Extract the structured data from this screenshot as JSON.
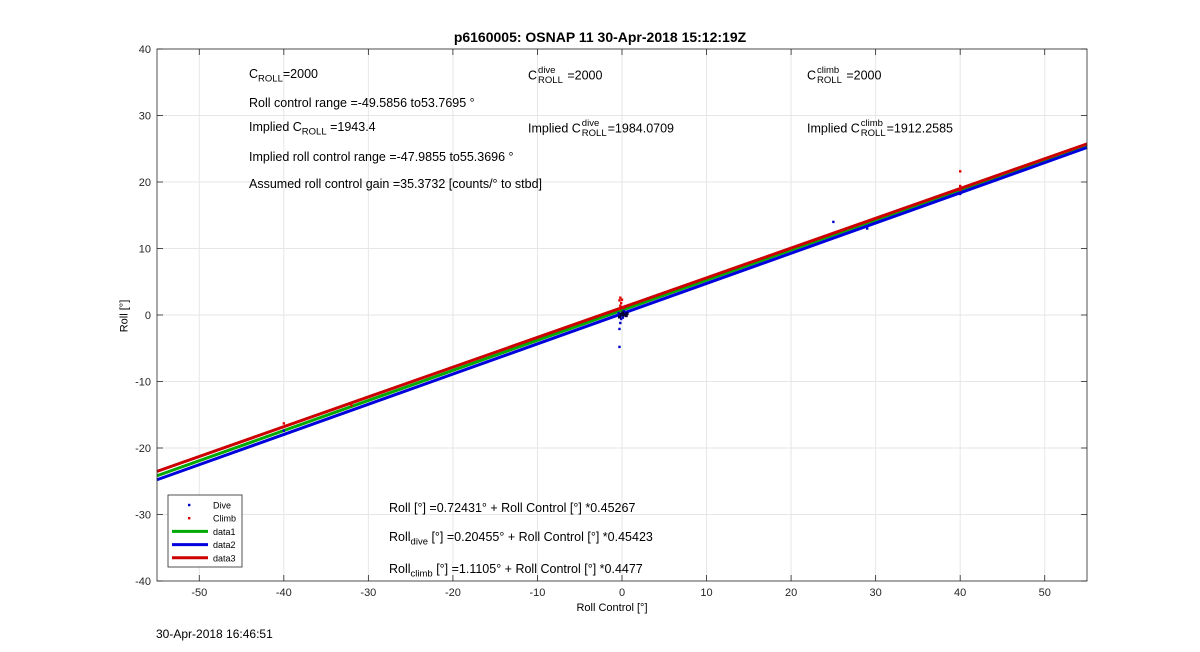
{
  "figure": {
    "title": "p6160005: OSNAP 11 30-Apr-2018 15:12:19Z",
    "timestamp": "30-Apr-2018 16:46:51"
  },
  "annotations": {
    "c_roll": {
      "symbol": "C",
      "sub": "ROLL",
      "value": "=2000"
    },
    "c_roll_dive": {
      "symbol": "C",
      "sup": "dive",
      "sub": "ROLL",
      "value": "=2000"
    },
    "c_roll_climb": {
      "symbol": "C",
      "sup": "climb",
      "sub": "ROLL",
      "value": "=2000"
    },
    "roll_range": "Roll control range =-49.5856 to53.7695 °",
    "implied_c_roll": {
      "prefix": "Implied C",
      "sub": "ROLL",
      "value": " =1943.4"
    },
    "implied_c_dive": {
      "prefix": "Implied C",
      "sup": "dive",
      "sub": "ROLL",
      "value": "=1984.0709"
    },
    "implied_c_climb": {
      "prefix": "Implied C",
      "sup": "climb",
      "sub": "ROLL",
      "value": "=1912.2585"
    },
    "implied_range": "Implied roll control range =-47.9855 to55.3696 °",
    "gain": "Assumed roll control gain =35.3732 [counts/° to stbd]",
    "fit_all": "Roll [°] =0.72431° + Roll Control [°] *0.45267",
    "fit_dive": {
      "prefix": "Roll",
      "sub": "dive",
      "rest": " [°] =0.20455° + Roll Control [°] *0.45423"
    },
    "fit_climb": {
      "prefix": "Roll",
      "sub": "climb",
      "rest": " [°] =1.1105° + Roll Control [°] *0.4477"
    }
  },
  "colors": {
    "dive": "#0000cc",
    "climb": "#e00000",
    "data1": "#00aa00",
    "data2": "#0000dd",
    "data3": "#cc0000",
    "grid": "#e6e6e6",
    "axis": "#262626"
  },
  "chart_data": {
    "type": "scatter",
    "xlabel": "Roll Control [°]",
    "ylabel": "Roll [°]",
    "xlim": [
      -55,
      55
    ],
    "ylim": [
      -40,
      40
    ],
    "xticks": [
      -50,
      -40,
      -30,
      -20,
      -10,
      0,
      10,
      20,
      30,
      40,
      50
    ],
    "yticks": [
      -40,
      -30,
      -20,
      -10,
      0,
      10,
      20,
      30,
      40
    ],
    "grid": true,
    "legend_position": "bottom-left",
    "series": [
      {
        "name": "Dive",
        "kind": "points",
        "color": "#0000cc",
        "points": [
          [
            -40,
            -18.0
          ],
          [
            -40,
            -17.4
          ],
          [
            -0.3,
            -4.8
          ],
          [
            -0.3,
            -2.1
          ],
          [
            -0.2,
            -1.2
          ],
          [
            -0.1,
            -0.6
          ],
          [
            -0.2,
            -0.2
          ],
          [
            0.0,
            0.0
          ],
          [
            0.3,
            0.1
          ],
          [
            0.1,
            -0.4
          ],
          [
            -0.4,
            0.3
          ],
          [
            0.2,
            0.6
          ],
          [
            25,
            14.0
          ],
          [
            29,
            13.0
          ],
          [
            40,
            18.2
          ]
        ]
      },
      {
        "name": "Climb",
        "kind": "points",
        "color": "#e00000",
        "points": [
          [
            -40,
            -16.3
          ],
          [
            -40,
            -16.8
          ],
          [
            -32,
            -13.6
          ],
          [
            -0.3,
            0.9
          ],
          [
            -0.2,
            1.4
          ],
          [
            -0.1,
            1.8
          ],
          [
            -0.3,
            2.2
          ],
          [
            -0.2,
            2.6
          ],
          [
            0.0,
            2.3
          ],
          [
            0.2,
            1.1
          ],
          [
            40,
            18.8
          ],
          [
            40,
            19.4
          ],
          [
            40,
            21.6
          ]
        ]
      },
      {
        "name": "data1",
        "kind": "line",
        "color": "#00aa00",
        "x": [
          -55,
          55
        ],
        "y": [
          -24.172,
          25.618
        ]
      },
      {
        "name": "data2",
        "kind": "line",
        "color": "#0000dd",
        "x": [
          -55,
          55
        ],
        "y": [
          -24.778,
          25.188
        ]
      },
      {
        "name": "data3",
        "kind": "line",
        "color": "#cc0000",
        "x": [
          -55,
          55
        ],
        "y": [
          -23.513,
          25.734
        ]
      }
    ]
  }
}
